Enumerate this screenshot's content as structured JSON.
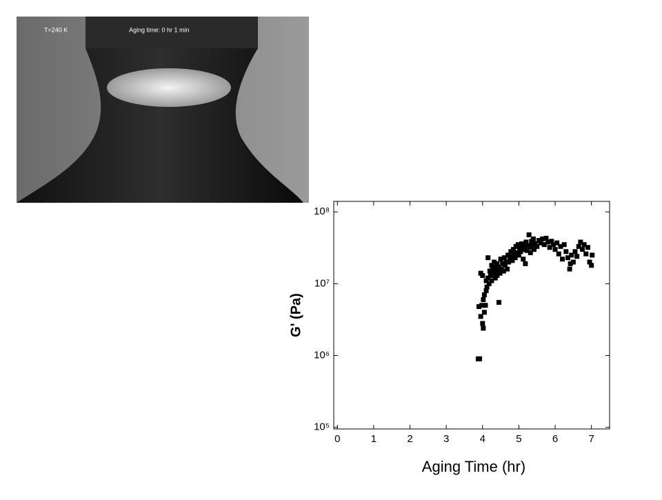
{
  "photo": {
    "temperature_label": "T=240 K",
    "aging_label": "Aging time: 0 hr 1 min"
  },
  "chart_data": {
    "type": "scatter",
    "xlabel": "Aging Time (hr)",
    "ylabel": "G' (Pa)",
    "log_y": true,
    "color": "#000000",
    "xlim": [
      -0.1,
      7.5
    ],
    "xticks": [
      0,
      1,
      2,
      3,
      4,
      5,
      6,
      7
    ],
    "ylim": [
      95000,
      140000000
    ],
    "yticks": [
      {
        "value": 100000,
        "label": "10⁵"
      },
      {
        "value": 1000000,
        "label": "10⁶"
      },
      {
        "value": 10000000,
        "label": "10⁷"
      },
      {
        "value": 100000000,
        "label": "10⁸"
      }
    ],
    "x": [
      3.88,
      3.92,
      3.9,
      3.95,
      3.98,
      4.0,
      4.02,
      3.95,
      4.0,
      4.02,
      4.05,
      4.05,
      4.08,
      4.1,
      4.1,
      4.12,
      4.15,
      4.15,
      4.18,
      4.2,
      4.22,
      4.25,
      4.25,
      4.28,
      4.3,
      4.32,
      4.35,
      4.35,
      4.38,
      4.4,
      4.4,
      4.42,
      4.45,
      4.45,
      4.48,
      4.5,
      4.52,
      4.55,
      4.58,
      4.6,
      4.62,
      4.65,
      4.68,
      4.7,
      4.72,
      4.75,
      4.78,
      4.8,
      4.82,
      4.85,
      4.88,
      4.9,
      4.92,
      4.95,
      4.98,
      5.0,
      5.02,
      5.05,
      5.08,
      5.1,
      5.12,
      5.15,
      5.18,
      5.2,
      5.22,
      5.25,
      5.28,
      5.3,
      5.32,
      5.35,
      5.38,
      5.4,
      5.42,
      5.45,
      5.5,
      5.55,
      5.6,
      5.65,
      5.7,
      5.75,
      5.8,
      5.85,
      5.9,
      5.95,
      6.0,
      6.05,
      6.1,
      6.15,
      6.2,
      6.25,
      6.3,
      6.35,
      6.4,
      6.42,
      6.45,
      6.5,
      6.55,
      6.6,
      6.65,
      6.7,
      6.75,
      6.8,
      6.85,
      6.9,
      6.95,
      7.0,
      7.02
    ],
    "values": [
      900000,
      900000,
      4800000,
      3500000,
      5000000,
      2800000,
      2400000,
      14000000,
      13000000,
      6000000,
      4000000,
      7000000,
      5000000,
      8000000,
      11000000,
      9000000,
      23000000,
      12000000,
      10000000,
      15000000,
      13000000,
      18000000,
      11000000,
      16000000,
      14000000,
      20000000,
      12000000,
      17000000,
      15000000,
      19000000,
      13000000,
      16000000,
      5500000,
      17000000,
      14000000,
      22000000,
      16000000,
      19000000,
      15000000,
      23000000,
      18000000,
      20000000,
      16000000,
      25000000,
      20000000,
      22000000,
      28000000,
      24000000,
      21000000,
      30000000,
      26000000,
      23000000,
      33000000,
      27000000,
      35000000,
      25000000,
      31000000,
      28000000,
      36000000,
      30000000,
      22000000,
      33000000,
      19000000,
      38000000,
      29000000,
      34000000,
      48000000,
      32000000,
      27000000,
      39000000,
      35000000,
      42000000,
      30000000,
      36000000,
      33000000,
      40000000,
      37000000,
      42000000,
      35000000,
      43000000,
      38000000,
      32000000,
      39000000,
      35000000,
      30000000,
      37000000,
      26000000,
      33000000,
      22000000,
      35000000,
      28000000,
      23000000,
      16000000,
      19000000,
      25000000,
      20000000,
      28000000,
      24000000,
      33000000,
      38000000,
      30000000,
      35000000,
      26000000,
      32000000,
      20000000,
      18000000,
      25000000
    ]
  }
}
